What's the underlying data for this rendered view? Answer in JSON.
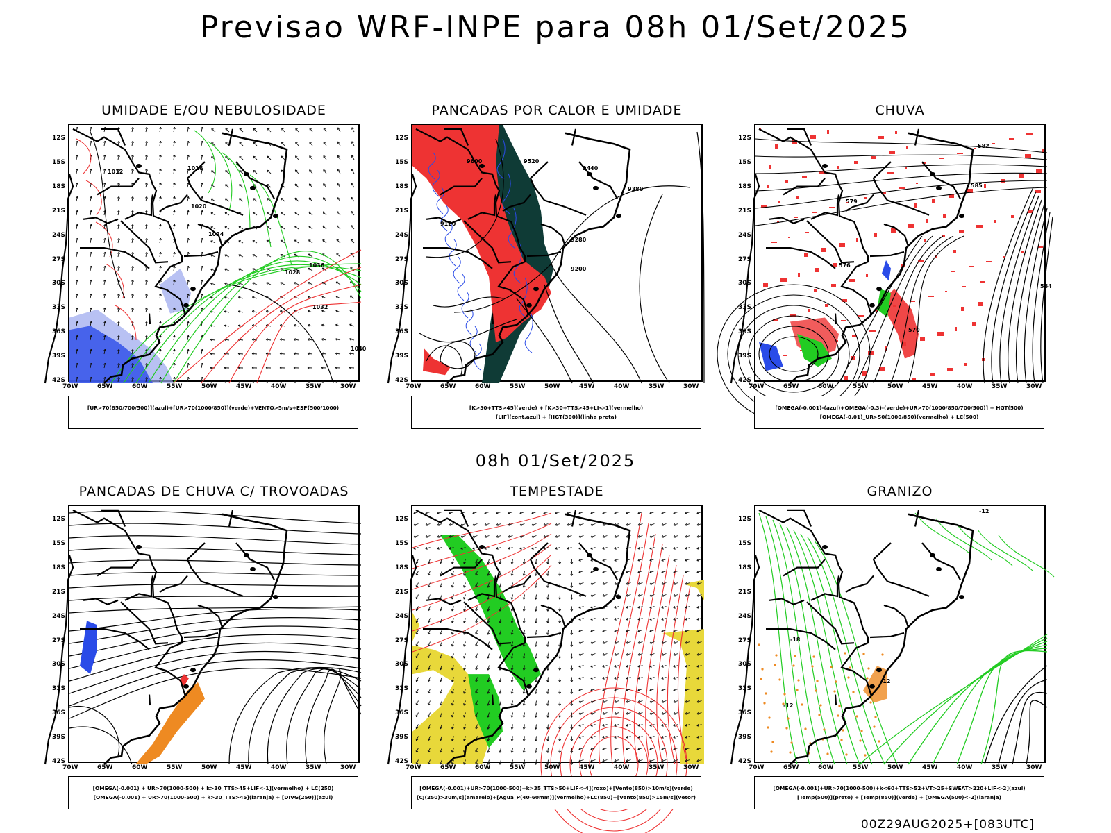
{
  "header": {
    "title": "Previsao WRF-INPE  para 08h 01/Set/2025",
    "mid_title": "08h 01/Set/2025",
    "footer": "00Z29AUG2025+[083UTC]"
  },
  "axes": {
    "lat_labels": [
      "12S",
      "15S",
      "18S",
      "21S",
      "24S",
      "27S",
      "30S",
      "33S",
      "36S",
      "39S",
      "42S"
    ],
    "lon_labels": [
      "70W",
      "65W",
      "60W",
      "55W",
      "50W",
      "45W",
      "40W",
      "35W",
      "30W"
    ]
  },
  "panels": [
    {
      "title": "UMIDADE E/OU NEBULOSIDADE",
      "legend": [
        "[UR>70(850/700/500)](azul)+[UR>70(1000/850)](verde)+VENTO>5m/s+ESP(500/1000)"
      ],
      "contour_labels": [
        "1012",
        "1016",
        "1020",
        "1024",
        "1028",
        "1032",
        "1036",
        "1040"
      ]
    },
    {
      "title": "PANCADAS POR CALOR E UMIDADE",
      "legend": [
        "[K>30+TTS>45](verde) + [K>30+TTS>45+LI<-1](vermelho)",
        "[LIF](cont.azul) + [HGT(300)](linha preta)"
      ],
      "contour_labels": [
        "9600",
        "9520",
        "9440",
        "9380",
        "9280",
        "9200",
        "9120"
      ]
    },
    {
      "title": "CHUVA",
      "legend": [
        "[OMEGA(-0.001)-(azul)+OMEGA(-0.3)-(verde)+UR>70(1000/850/700/500)] + HGT(500)",
        "[OMEGA(-0.01)_UR>50(1000/850)(vermelho) + LC(500)"
      ],
      "contour_labels": [
        "582",
        "585",
        "579",
        "576",
        "570",
        "564"
      ]
    },
    {
      "title": "PANCADAS DE CHUVA C/ TROVOADAS",
      "legend": [
        "[OMEGA(-0.001) + UR>70(1000-500) + k>30_TTS>45+LIF<-1](vermelho) + LC(250)",
        "[OMEGA(-0.001) + UR>70(1000-500) + k>30_TTS>45](laranja) + [DIVG(250)](azul)"
      ],
      "contour_labels": []
    },
    {
      "title": "TEMPESTADE",
      "legend": [
        "[OMEGA(-0.001)+UR>70(1000-500)+k>35_TTS>50+LIF<-4](roxo)+[Vento(850)>10m/s](verde)",
        "[CJ(250)>30m/s](amarelo)+[Agua_P(40-60mm)](vermelho)+LC(850)+[Vento(850)>15m/s](vetor)"
      ],
      "contour_labels": []
    },
    {
      "title": "GRANIZO",
      "legend": [
        "[OMEGA(-0.001)+UR>70(1000-500)+k<60+TTS>52+VT>25+SWEAT>220+LIF<-2](azul)",
        "[Temp(500)](preto) + [Temp(850)](verde) + [OMEGA(500)<-2](laranja)"
      ],
      "contour_labels": [
        "-12",
        "-18",
        "-12",
        "-12"
      ]
    }
  ],
  "colors": {
    "blue": "#2a4be8",
    "green": "#22cc22",
    "red": "#ee3333",
    "dark_green": "#0f3b36",
    "yellow": "#e8d83a",
    "orange": "#ee8a22",
    "lavender": "#9aa6ee"
  }
}
